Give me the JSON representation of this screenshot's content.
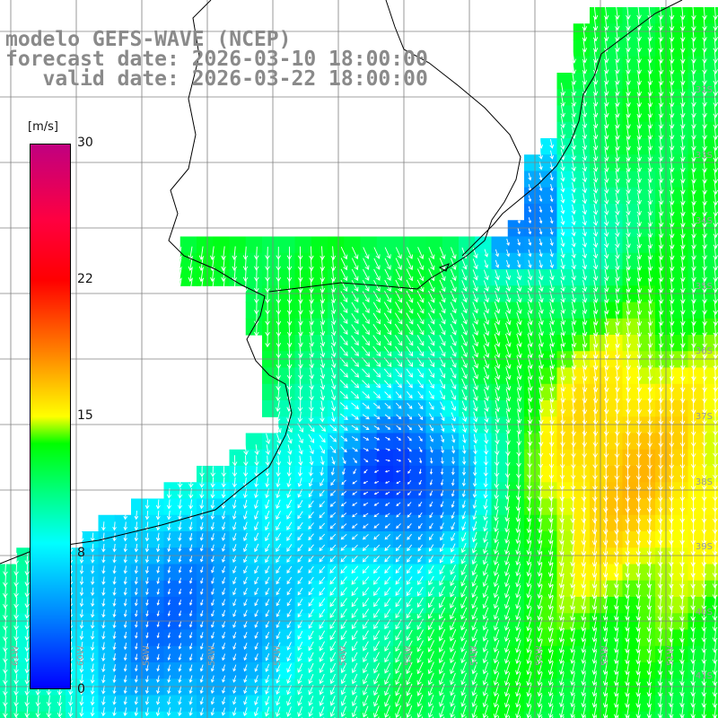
{
  "title": {
    "line1": "modelo GEFS-WAVE (NCEP)",
    "line2": "forecast date: 2026-03-10 18:00:00",
    "line3": "   valid date: 2026-03-22 18:00:00"
  },
  "colorbar": {
    "unit": "[m/s]",
    "ticks": [
      "30",
      "22",
      "15",
      "8",
      "0"
    ]
  },
  "latitude_labels": [
    "32S",
    "33S",
    "34S",
    "35S",
    "36S",
    "37S",
    "38S",
    "39S",
    "40S",
    "41S"
  ],
  "longitude_labels": [
    "61W",
    "60W",
    "59W",
    "58W",
    "57W",
    "56W",
    "55W",
    "54W",
    "53W",
    "52W",
    "51W"
  ],
  "colors": {
    "land": "#ffffff",
    "grid": "#808080",
    "coast": "#000000",
    "arrow": "#ffffff",
    "title": "#8a8a8a"
  }
}
